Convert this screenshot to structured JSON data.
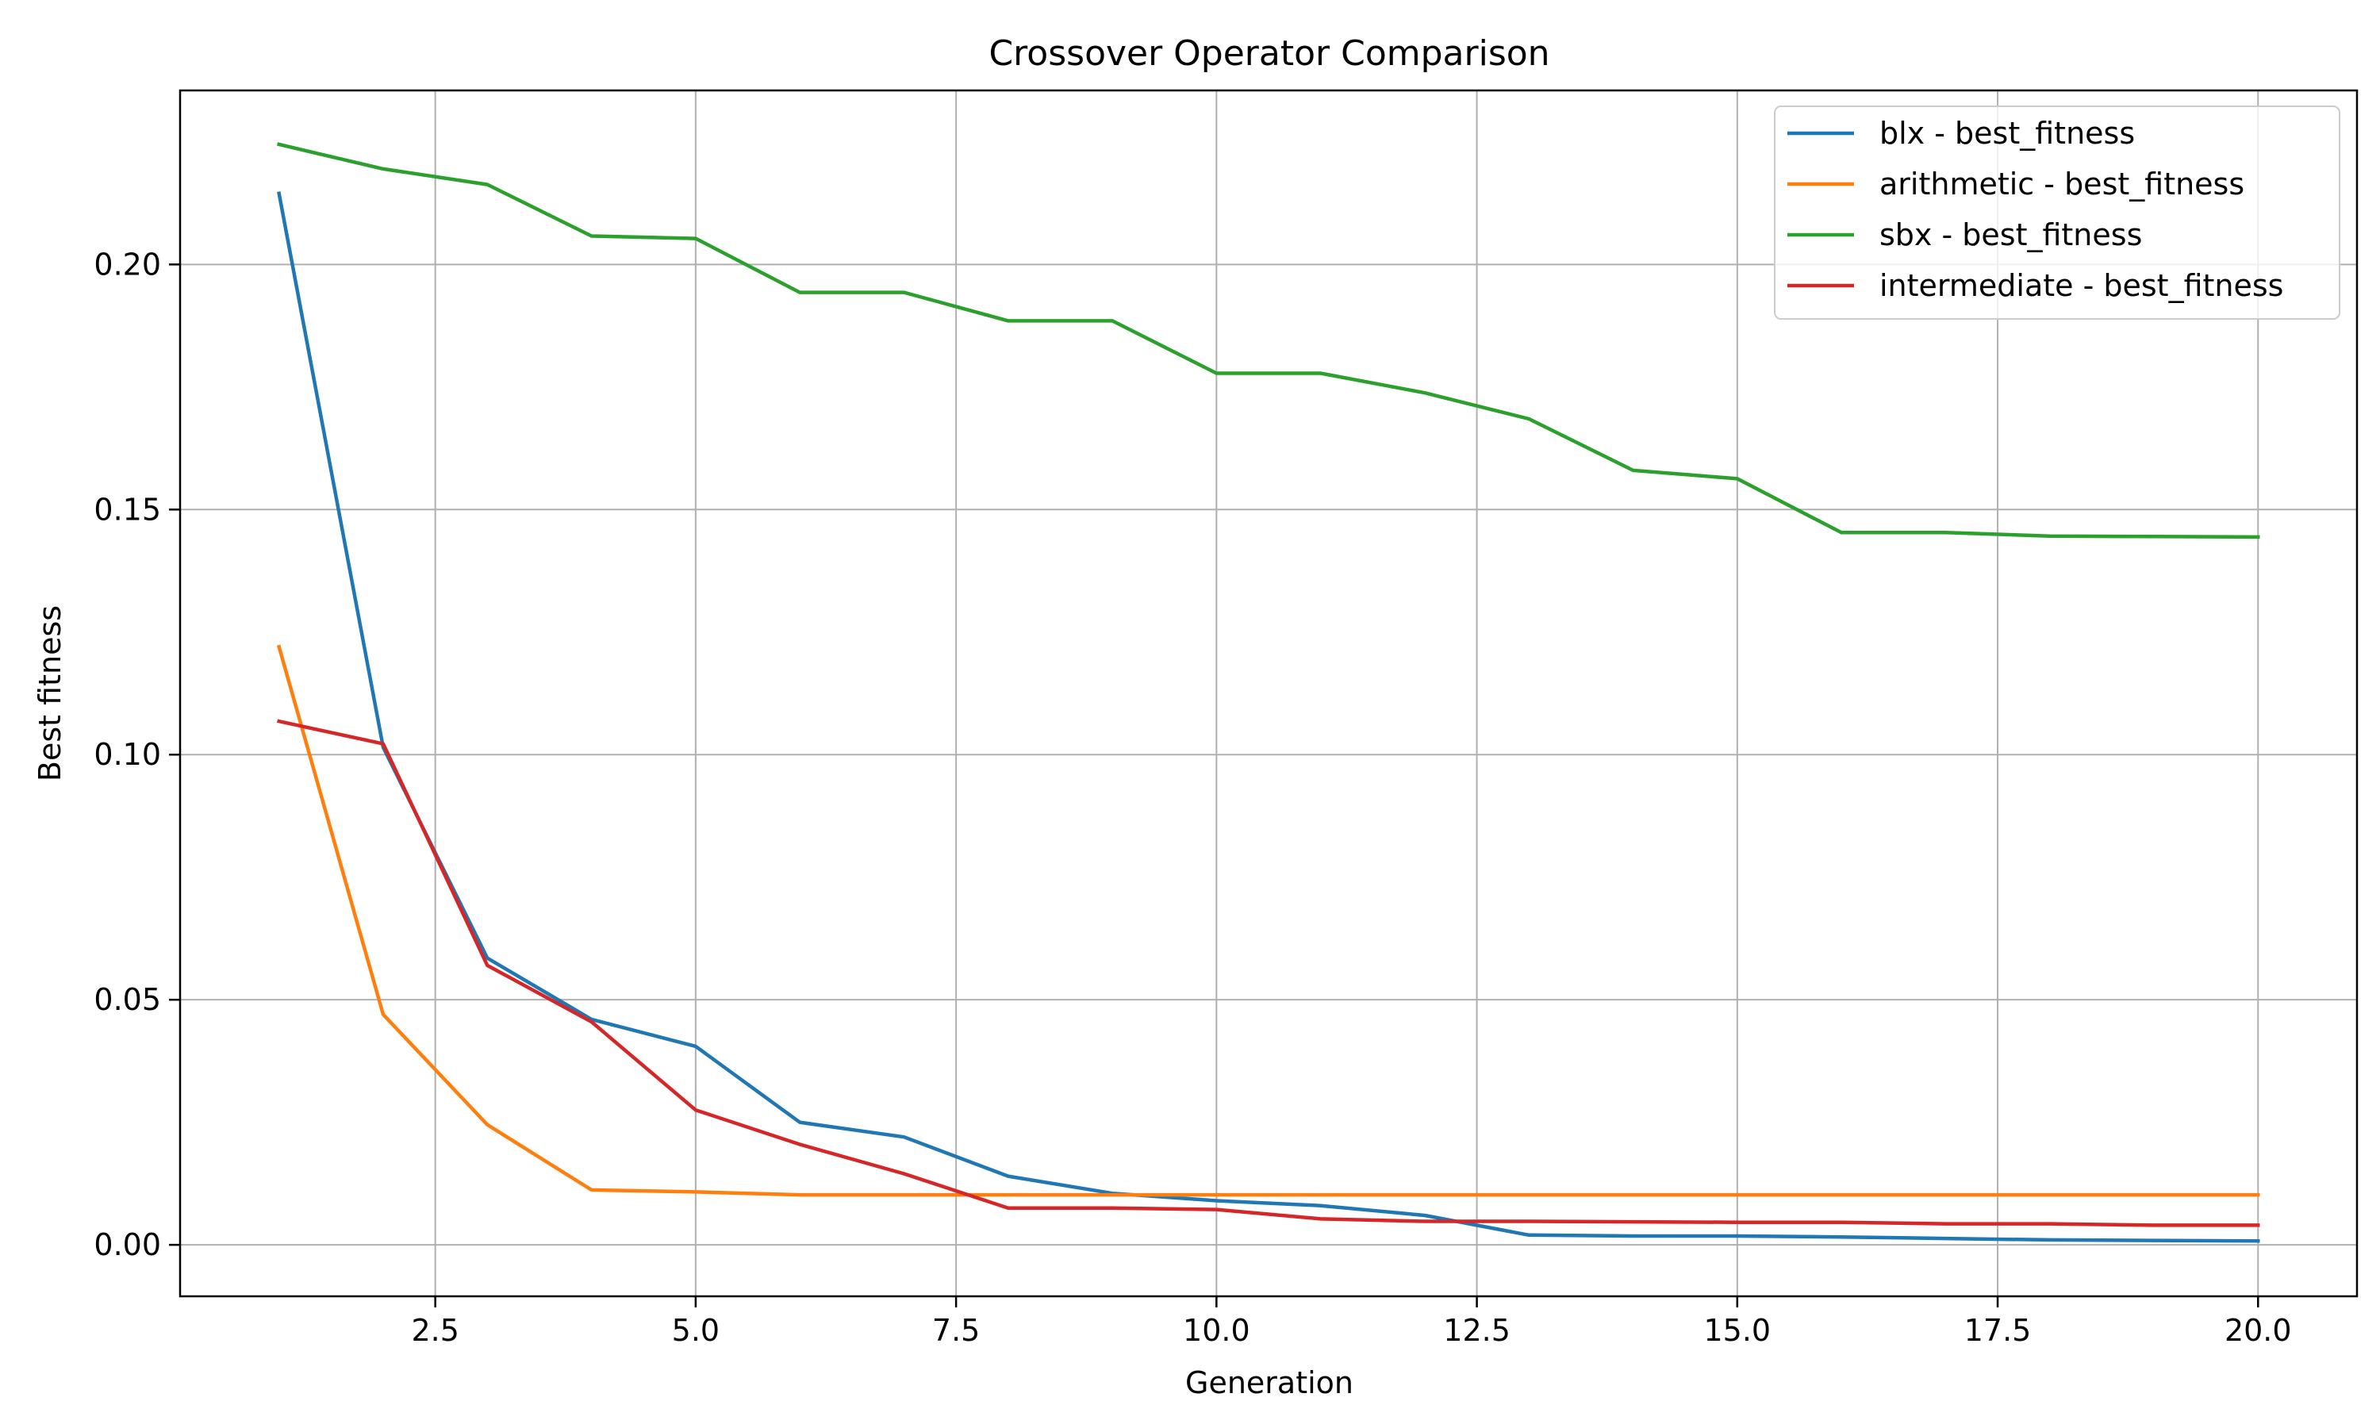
{
  "chart_data": {
    "type": "line",
    "title": "Crossover Operator Comparison",
    "xlabel": "Generation",
    "ylabel": "Best fitness",
    "xlim": [
      0.05,
      20.95
    ],
    "ylim": [
      -0.0105,
      0.2355
    ],
    "x_ticks": [
      2.5,
      5.0,
      7.5,
      10.0,
      12.5,
      15.0,
      17.5,
      20.0
    ],
    "x_tick_labels": [
      "2.5",
      "5.0",
      "7.5",
      "10.0",
      "12.5",
      "15.0",
      "17.5",
      "20.0"
    ],
    "y_ticks": [
      0.0,
      0.05,
      0.1,
      0.15,
      0.2
    ],
    "y_tick_labels": [
      "0.00",
      "0.05",
      "0.10",
      "0.15",
      "0.20"
    ],
    "grid": true,
    "legend_position": "top-right",
    "x": [
      1,
      2,
      3,
      4,
      5,
      6,
      7,
      8,
      9,
      10,
      11,
      12,
      13,
      14,
      15,
      16,
      17,
      18,
      19,
      20
    ],
    "series": [
      {
        "name": "blx - best_fitness",
        "color": "#1f77b4",
        "values": [
          0.2145,
          0.1015,
          0.0585,
          0.046,
          0.0405,
          0.025,
          0.022,
          0.014,
          0.0105,
          0.009,
          0.008,
          0.006,
          0.002,
          0.0018,
          0.0018,
          0.0016,
          0.0013,
          0.001,
          0.0009,
          0.0008
        ]
      },
      {
        "name": "arithmetic - best_fitness",
        "color": "#ff7f0e",
        "values": [
          0.122,
          0.047,
          0.0245,
          0.0112,
          0.0108,
          0.0102,
          0.0102,
          0.0102,
          0.0102,
          0.0102,
          0.0102,
          0.0102,
          0.0102,
          0.0102,
          0.0102,
          0.0102,
          0.0102,
          0.0102,
          0.0102,
          0.0102
        ]
      },
      {
        "name": "sbx - best_fitness",
        "color": "#2ca02c",
        "values": [
          0.2245,
          0.2195,
          0.2163,
          0.2058,
          0.2053,
          0.1943,
          0.1943,
          0.1885,
          0.1885,
          0.1778,
          0.1778,
          0.1738,
          0.1685,
          0.158,
          0.1563,
          0.1453,
          0.1453,
          0.1446,
          0.1445,
          0.1444
        ]
      },
      {
        "name": "intermediate - best_fitness",
        "color": "#d62728",
        "values": [
          0.1068,
          0.1022,
          0.057,
          0.0455,
          0.0275,
          0.0205,
          0.0145,
          0.0075,
          0.0075,
          0.0072,
          0.0053,
          0.0048,
          0.0048,
          0.0047,
          0.0046,
          0.0046,
          0.0043,
          0.0043,
          0.004,
          0.004
        ]
      }
    ]
  }
}
